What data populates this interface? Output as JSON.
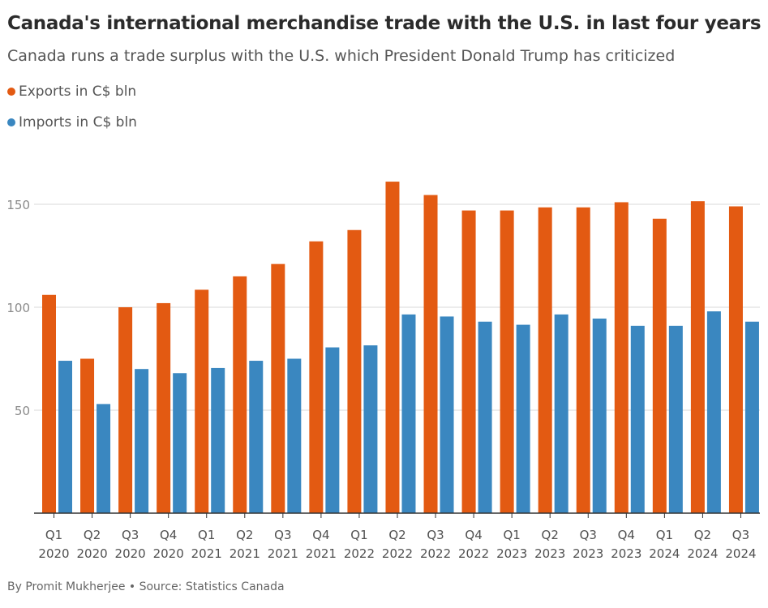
{
  "header": {
    "title": "Canada's international merchandise trade with the U.S. in last four years",
    "subtitle": "Canada runs a trade surplus with the U.S. which President Donald Trump has criticized"
  },
  "legend": [
    {
      "label": "Exports in C$ bln",
      "color": "#e35a12"
    },
    {
      "label": "Imports in C$ bln",
      "color": "#3a87c0"
    }
  ],
  "footer": {
    "credit": "By Promit Mukherjee • Source: Statistics Canada"
  },
  "chart_data": {
    "type": "bar",
    "title": "Canada's international merchandise trade with the U.S. in last four years",
    "subtitle": "Canada runs a trade surplus with the U.S. which President Donald Trump has criticized",
    "categories": [
      [
        "Q1",
        "2020"
      ],
      [
        "Q2",
        "2020"
      ],
      [
        "Q3",
        "2020"
      ],
      [
        "Q4",
        "2020"
      ],
      [
        "Q1",
        "2021"
      ],
      [
        "Q2",
        "2021"
      ],
      [
        "Q3",
        "2021"
      ],
      [
        "Q4",
        "2021"
      ],
      [
        "Q1",
        "2022"
      ],
      [
        "Q2",
        "2022"
      ],
      [
        "Q3",
        "2022"
      ],
      [
        "Q4",
        "2022"
      ],
      [
        "Q1",
        "2023"
      ],
      [
        "Q2",
        "2023"
      ],
      [
        "Q3",
        "2023"
      ],
      [
        "Q4",
        "2023"
      ],
      [
        "Q1",
        "2024"
      ],
      [
        "Q2",
        "2024"
      ],
      [
        "Q3",
        "2024"
      ]
    ],
    "series": [
      {
        "name": "Exports in C$ bln",
        "color": "#e35a12",
        "values": [
          106,
          75,
          100,
          102,
          108.5,
          115,
          121,
          132,
          137.5,
          161,
          154.5,
          147,
          147,
          148.5,
          148.5,
          151,
          143,
          151.5,
          149
        ]
      },
      {
        "name": "Imports in C$ bln",
        "color": "#3a87c0",
        "values": [
          74,
          53,
          70,
          68,
          70.5,
          74,
          75,
          80.5,
          81.5,
          96.5,
          95.5,
          93,
          91.5,
          96.5,
          94.5,
          91,
          91,
          98,
          93
        ]
      }
    ],
    "yticks": [
      50,
      100,
      150
    ],
    "ylim": [
      0,
      165
    ],
    "grid": true,
    "legend_position": "top-left"
  }
}
